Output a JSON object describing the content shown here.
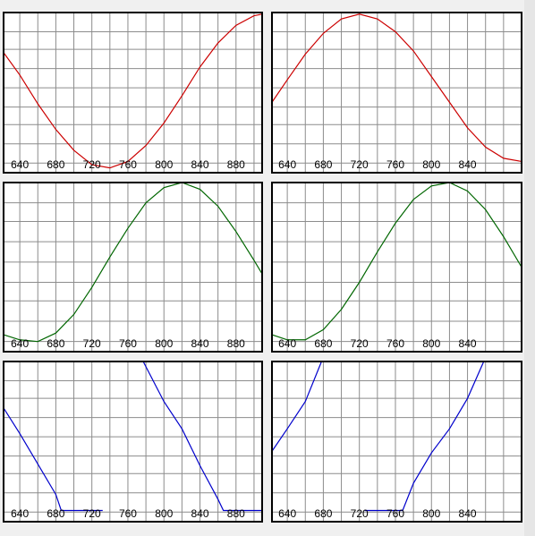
{
  "chart_data": [
    {
      "type": "line",
      "color": "#cc0000",
      "x": [
        622,
        640,
        660,
        680,
        700,
        720,
        740,
        760,
        780,
        800,
        820,
        840,
        860,
        880,
        900,
        909
      ],
      "values": [
        0.75,
        0.61,
        0.43,
        0.27,
        0.14,
        0.05,
        0.03,
        0.07,
        0.17,
        0.31,
        0.48,
        0.66,
        0.81,
        0.92,
        0.98,
        0.99
      ],
      "xlim": [
        622,
        909
      ],
      "ylim": [
        0,
        1
      ],
      "xticks": [
        640,
        680,
        720,
        760,
        800,
        840,
        880
      ],
      "xminor": [
        660,
        700,
        740,
        780,
        820,
        860,
        900
      ],
      "yticks": [
        0.06,
        0.18,
        0.3,
        0.41,
        0.53,
        0.65,
        0.77,
        0.88
      ],
      "grid": true
    },
    {
      "type": "line",
      "color": "#cc0000",
      "x": [
        623,
        640,
        660,
        680,
        700,
        720,
        740,
        760,
        780,
        800,
        820,
        840,
        860,
        880,
        900
      ],
      "values": [
        0.44,
        0.58,
        0.74,
        0.87,
        0.96,
        0.99,
        0.96,
        0.88,
        0.76,
        0.6,
        0.44,
        0.28,
        0.16,
        0.09,
        0.07
      ],
      "xlim": [
        623,
        900
      ],
      "ylim": [
        0,
        1
      ],
      "xticks": [
        640,
        680,
        720,
        760,
        800,
        840
      ],
      "xminor": [
        660,
        700,
        740,
        780,
        820,
        860,
        880
      ],
      "yticks": [
        0.06,
        0.18,
        0.3,
        0.41,
        0.53,
        0.65,
        0.77,
        0.88
      ],
      "grid": true
    },
    {
      "type": "line",
      "color": "#006600",
      "x": [
        622,
        640,
        660,
        680,
        700,
        720,
        740,
        760,
        780,
        800,
        820,
        840,
        860,
        880,
        900,
        909
      ],
      "values": [
        0.1,
        0.07,
        0.06,
        0.11,
        0.22,
        0.38,
        0.56,
        0.73,
        0.88,
        0.97,
        1.0,
        0.96,
        0.86,
        0.71,
        0.54,
        0.46
      ],
      "xlim": [
        622,
        909
      ],
      "ylim": [
        0,
        1
      ],
      "xticks": [
        640,
        680,
        720,
        760,
        800,
        840,
        880
      ],
      "xminor": [
        660,
        700,
        740,
        780,
        820,
        860,
        900
      ],
      "yticks": [
        0.06,
        0.18,
        0.3,
        0.41,
        0.53,
        0.65,
        0.77,
        0.88
      ],
      "grid": true
    },
    {
      "type": "line",
      "color": "#006600",
      "x": [
        623,
        640,
        660,
        680,
        700,
        720,
        740,
        760,
        780,
        800,
        820,
        840,
        860,
        880,
        900
      ],
      "values": [
        0.1,
        0.07,
        0.07,
        0.13,
        0.25,
        0.41,
        0.59,
        0.76,
        0.9,
        0.98,
        1.0,
        0.95,
        0.84,
        0.68,
        0.5
      ],
      "xlim": [
        623,
        900
      ],
      "ylim": [
        0,
        1
      ],
      "xticks": [
        640,
        680,
        720,
        760,
        800,
        840
      ],
      "xminor": [
        660,
        700,
        740,
        780,
        820,
        860,
        880
      ],
      "yticks": [
        0.06,
        0.18,
        0.3,
        0.41,
        0.53,
        0.65,
        0.77,
        0.88
      ],
      "grid": true
    },
    {
      "type": "line",
      "color": "#0000cc",
      "x": [
        622,
        640,
        660,
        680,
        686,
        700,
        720,
        732,
        734,
        736,
        760,
        777,
        800,
        820,
        840,
        860,
        866,
        880,
        900,
        909
      ],
      "values": [
        0.71,
        0.55,
        0.36,
        0.17,
        0.07,
        0.07,
        0.07,
        0.07,
        null,
        1,
        1,
        1,
        0.75,
        0.58,
        0.35,
        0.14,
        0.07,
        0.07,
        0.07,
        0.07
      ],
      "xlim": [
        622,
        909
      ],
      "ylim": [
        0,
        1
      ],
      "xticks": [
        640,
        680,
        720,
        760,
        800,
        840,
        880
      ],
      "xminor": [
        660,
        700,
        740,
        780,
        820,
        860,
        900
      ],
      "yticks": [
        0.06,
        0.18,
        0.3,
        0.41,
        0.53,
        0.65,
        0.77,
        0.88
      ],
      "grid": true
    },
    {
      "type": "line",
      "color": "#0000cc",
      "x": [
        623,
        640,
        660,
        678,
        700,
        722,
        724,
        726,
        750,
        768,
        780,
        800,
        820,
        840,
        858,
        880,
        900
      ],
      "values": [
        0.44,
        0.58,
        0.75,
        1,
        1,
        1,
        null,
        0.07,
        0.07,
        0.07,
        0.24,
        0.43,
        0.58,
        0.77,
        1,
        1,
        1
      ],
      "xlim": [
        623,
        900
      ],
      "ylim": [
        0,
        1
      ],
      "xticks": [
        640,
        680,
        720,
        760,
        800,
        840
      ],
      "xminor": [
        660,
        700,
        740,
        780,
        820,
        860,
        880
      ],
      "yticks": [
        0.06,
        0.18,
        0.3,
        0.41,
        0.53,
        0.65,
        0.77,
        0.88
      ],
      "grid": true
    }
  ]
}
